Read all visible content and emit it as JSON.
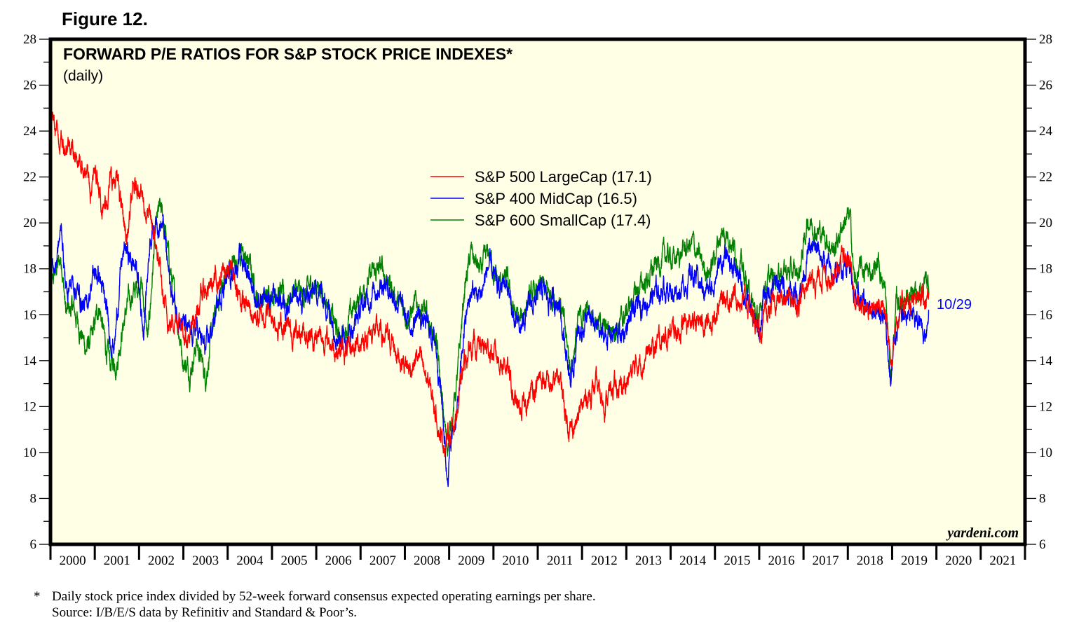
{
  "figure_label": "Figure 12.",
  "footnote": {
    "marker": "*",
    "line1": "Daily stock price index divided by 52-week forward consensus expected operating earnings per share.",
    "line2": "Source: I/B/E/S data by Refinitiv and Standard & Poor’s."
  },
  "chart_data": {
    "type": "line",
    "title": "FORWARD P/E RATIOS FOR S&P STOCK PRICE INDEXES*",
    "subtitle": "(daily)",
    "credit": "yardeni.com",
    "last_date_label": "10/29",
    "xlabel": "",
    "ylabel": "",
    "ylim": [
      6,
      28
    ],
    "y_ticks": [
      6,
      8,
      10,
      12,
      14,
      16,
      18,
      20,
      22,
      24,
      26,
      28
    ],
    "y_axis_sides": [
      "left",
      "right"
    ],
    "x_range": [
      2000,
      2022
    ],
    "x_tick_labels": [
      "2000",
      "2001",
      "2002",
      "2003",
      "2004",
      "2005",
      "2006",
      "2007",
      "2008",
      "2009",
      "2010",
      "2011",
      "2012",
      "2013",
      "2014",
      "2015",
      "2016",
      "2017",
      "2018",
      "2019",
      "2020",
      "2021"
    ],
    "grid": false,
    "legend_position": "center-top",
    "x_sample_note": "approximate values, sampled roughly every 2 months (year fractions)",
    "series": [
      {
        "name": "S&P 500 LargeCap",
        "legend_label": "S&P 500 LargeCap (17.1)",
        "latest": 17.1,
        "color": "#ff0000",
        "x": [
          2000.0,
          2000.15,
          2000.3,
          2000.45,
          2000.6,
          2000.75,
          2000.9,
          2001.05,
          2001.2,
          2001.35,
          2001.5,
          2001.65,
          2001.72,
          2001.85,
          2002.0,
          2002.15,
          2002.3,
          2002.45,
          2002.55,
          2002.7,
          2002.85,
          2003.0,
          2003.15,
          2003.3,
          2003.45,
          2003.6,
          2003.75,
          2003.9,
          2004.1,
          2004.3,
          2004.5,
          2004.7,
          2004.9,
          2005.1,
          2005.3,
          2005.5,
          2005.7,
          2005.9,
          2006.1,
          2006.3,
          2006.5,
          2006.7,
          2006.9,
          2007.1,
          2007.3,
          2007.5,
          2007.7,
          2007.9,
          2008.1,
          2008.3,
          2008.5,
          2008.7,
          2008.85,
          2008.95,
          2009.1,
          2009.2,
          2009.35,
          2009.5,
          2009.7,
          2009.9,
          2010.1,
          2010.3,
          2010.45,
          2010.6,
          2010.75,
          2010.9,
          2011.1,
          2011.3,
          2011.5,
          2011.65,
          2011.75,
          2011.9,
          2012.1,
          2012.3,
          2012.5,
          2012.7,
          2012.9,
          2013.1,
          2013.3,
          2013.5,
          2013.7,
          2013.9,
          2014.1,
          2014.3,
          2014.5,
          2014.7,
          2014.9,
          2015.1,
          2015.3,
          2015.5,
          2015.65,
          2015.8,
          2016.0,
          2016.1,
          2016.3,
          2016.5,
          2016.7,
          2016.9,
          2017.1,
          2017.3,
          2017.5,
          2017.7,
          2017.9,
          2018.05,
          2018.15,
          2018.3,
          2018.5,
          2018.7,
          2018.85,
          2018.97,
          2019.1,
          2019.3,
          2019.5,
          2019.65,
          2019.75,
          2019.83
        ],
        "values": [
          24.8,
          24.0,
          23.4,
          23.6,
          22.8,
          22.5,
          21.5,
          22.3,
          20.5,
          21.8,
          21.8,
          20.2,
          19.2,
          21.2,
          21.8,
          20.5,
          19.8,
          18.2,
          16.5,
          15.6,
          16.0,
          15.5,
          14.9,
          16.2,
          17.0,
          17.2,
          17.5,
          17.8,
          17.9,
          16.6,
          16.2,
          15.8,
          16.2,
          15.7,
          15.4,
          15.2,
          15.4,
          15.0,
          15.0,
          14.8,
          14.5,
          14.3,
          14.7,
          15.0,
          15.3,
          15.1,
          14.8,
          14.2,
          13.6,
          14.2,
          13.2,
          11.8,
          10.4,
          10.6,
          11.2,
          12.0,
          14.0,
          14.7,
          14.6,
          14.5,
          14.1,
          13.9,
          12.3,
          11.7,
          12.2,
          12.8,
          13.2,
          12.8,
          13.3,
          11.5,
          11.0,
          11.4,
          12.4,
          12.8,
          12.2,
          12.8,
          12.8,
          13.4,
          14.0,
          14.3,
          14.7,
          15.1,
          15.3,
          15.5,
          15.6,
          15.7,
          15.6,
          16.5,
          16.8,
          16.9,
          16.6,
          16.3,
          15.2,
          15.5,
          16.4,
          16.6,
          16.8,
          16.6,
          17.5,
          17.6,
          17.8,
          17.9,
          18.2,
          18.5,
          16.6,
          16.3,
          16.4,
          16.5,
          16.0,
          14.2,
          15.8,
          16.6,
          16.4,
          16.9,
          16.6,
          17.1
        ]
      },
      {
        "name": "S&P 400 MidCap",
        "legend_label": "S&P 400 MidCap (16.5)",
        "latest": 16.5,
        "color": "#0000ff",
        "x": [
          2000.0,
          2000.1,
          2000.25,
          2000.35,
          2000.5,
          2000.65,
          2000.8,
          2000.95,
          2001.1,
          2001.25,
          2001.35,
          2001.45,
          2001.6,
          2001.7,
          2001.8,
          2001.95,
          2002.1,
          2002.25,
          2002.4,
          2002.55,
          2002.7,
          2002.85,
          2003.0,
          2003.15,
          2003.3,
          2003.5,
          2003.7,
          2003.9,
          2004.1,
          2004.3,
          2004.5,
          2004.7,
          2004.9,
          2005.1,
          2005.3,
          2005.5,
          2005.7,
          2005.9,
          2006.1,
          2006.3,
          2006.5,
          2006.7,
          2006.9,
          2007.1,
          2007.3,
          2007.5,
          2007.7,
          2007.9,
          2008.1,
          2008.3,
          2008.5,
          2008.7,
          2008.85,
          2008.95,
          2009.05,
          2009.2,
          2009.35,
          2009.5,
          2009.7,
          2009.9,
          2010.1,
          2010.3,
          2010.45,
          2010.6,
          2010.75,
          2010.9,
          2011.1,
          2011.3,
          2011.5,
          2011.65,
          2011.75,
          2011.9,
          2012.1,
          2012.3,
          2012.5,
          2012.7,
          2012.9,
          2013.1,
          2013.3,
          2013.5,
          2013.7,
          2013.9,
          2014.1,
          2014.3,
          2014.5,
          2014.7,
          2014.9,
          2015.1,
          2015.3,
          2015.5,
          2015.65,
          2015.8,
          2016.0,
          2016.1,
          2016.3,
          2016.5,
          2016.7,
          2016.9,
          2017.1,
          2017.3,
          2017.5,
          2017.7,
          2017.9,
          2018.05,
          2018.15,
          2018.3,
          2018.5,
          2018.7,
          2018.85,
          2018.97,
          2019.1,
          2019.3,
          2019.5,
          2019.65,
          2019.75,
          2019.83
        ],
        "values": [
          18.3,
          18.0,
          19.8,
          17.0,
          17.5,
          16.8,
          16.2,
          17.7,
          17.8,
          16.2,
          15.0,
          14.8,
          18.2,
          18.9,
          18.4,
          18.0,
          15.3,
          19.5,
          20.2,
          19.8,
          17.2,
          16.2,
          15.6,
          15.0,
          15.4,
          14.4,
          15.8,
          17.3,
          18.0,
          18.5,
          17.8,
          16.2,
          16.6,
          16.8,
          16.5,
          16.8,
          16.5,
          16.9,
          17.0,
          16.2,
          15.2,
          15.0,
          15.8,
          16.5,
          17.1,
          17.5,
          17.0,
          16.4,
          15.5,
          16.0,
          15.5,
          14.8,
          12.0,
          9.0,
          10.5,
          12.0,
          15.6,
          17.0,
          16.8,
          18.2,
          17.0,
          17.5,
          15.8,
          15.2,
          16.2,
          16.5,
          17.0,
          16.6,
          16.6,
          14.2,
          13.0,
          15.0,
          15.8,
          15.5,
          15.0,
          15.2,
          15.1,
          15.8,
          16.5,
          16.7,
          17.0,
          17.2,
          17.0,
          17.3,
          17.8,
          17.2,
          17.0,
          18.2,
          18.5,
          17.8,
          17.0,
          16.2,
          15.0,
          16.8,
          17.2,
          17.3,
          17.0,
          16.9,
          18.7,
          18.8,
          18.2,
          17.6,
          18.2,
          18.4,
          16.5,
          16.6,
          16.4,
          16.3,
          15.5,
          13.0,
          15.6,
          16.0,
          15.8,
          15.5,
          15.2,
          16.5
        ]
      },
      {
        "name": "S&P 600 SmallCap",
        "legend_label": "S&P 600 SmallCap (17.4)",
        "latest": 17.4,
        "color": "#008000",
        "x": [
          2000.0,
          2000.1,
          2000.25,
          2000.35,
          2000.5,
          2000.65,
          2000.8,
          2000.95,
          2001.1,
          2001.25,
          2001.35,
          2001.5,
          2001.6,
          2001.75,
          2001.9,
          2002.05,
          2002.2,
          2002.35,
          2002.45,
          2002.55,
          2002.7,
          2002.85,
          2003.0,
          2003.15,
          2003.3,
          2003.5,
          2003.7,
          2003.9,
          2004.1,
          2004.3,
          2004.5,
          2004.7,
          2004.9,
          2005.1,
          2005.3,
          2005.5,
          2005.7,
          2005.9,
          2006.1,
          2006.3,
          2006.5,
          2006.7,
          2006.9,
          2007.1,
          2007.3,
          2007.5,
          2007.7,
          2007.9,
          2008.1,
          2008.3,
          2008.5,
          2008.7,
          2008.85,
          2008.95,
          2009.05,
          2009.2,
          2009.35,
          2009.5,
          2009.7,
          2009.9,
          2010.1,
          2010.3,
          2010.45,
          2010.6,
          2010.75,
          2010.9,
          2011.1,
          2011.3,
          2011.5,
          2011.65,
          2011.75,
          2011.9,
          2012.1,
          2012.3,
          2012.5,
          2012.7,
          2012.9,
          2013.1,
          2013.3,
          2013.5,
          2013.7,
          2013.9,
          2014.1,
          2014.3,
          2014.5,
          2014.7,
          2014.9,
          2015.1,
          2015.3,
          2015.5,
          2015.65,
          2015.8,
          2016.0,
          2016.1,
          2016.3,
          2016.5,
          2016.7,
          2016.9,
          2017.1,
          2017.3,
          2017.5,
          2017.7,
          2017.9,
          2018.05,
          2018.15,
          2018.3,
          2018.5,
          2018.7,
          2018.85,
          2018.97,
          2019.1,
          2019.3,
          2019.5,
          2019.65,
          2019.75,
          2019.83
        ],
        "values": [
          16.8,
          17.8,
          18.5,
          16.0,
          16.3,
          15.5,
          14.5,
          15.0,
          16.5,
          14.5,
          13.8,
          14.0,
          15.2,
          16.5,
          17.0,
          17.5,
          14.8,
          19.2,
          20.5,
          20.2,
          18.0,
          16.0,
          14.0,
          13.6,
          14.8,
          13.3,
          15.8,
          17.5,
          18.2,
          18.6,
          18.2,
          16.5,
          16.8,
          17.2,
          16.6,
          17.0,
          16.8,
          17.2,
          17.3,
          16.3,
          15.0,
          15.6,
          16.5,
          17.3,
          17.8,
          18.0,
          17.2,
          16.3,
          16.0,
          16.5,
          15.8,
          15.0,
          12.0,
          10.3,
          11.2,
          13.5,
          17.2,
          18.7,
          17.8,
          18.7,
          17.3,
          17.5,
          16.2,
          15.6,
          16.6,
          16.8,
          17.2,
          16.8,
          16.8,
          14.8,
          13.5,
          15.6,
          16.2,
          16.0,
          15.3,
          15.5,
          15.7,
          16.5,
          17.2,
          17.6,
          18.2,
          18.6,
          18.4,
          18.8,
          19.1,
          18.2,
          17.9,
          19.4,
          19.6,
          18.6,
          17.8,
          16.7,
          15.5,
          17.3,
          17.6,
          18.0,
          17.8,
          17.8,
          20.2,
          19.7,
          19.4,
          18.8,
          20.1,
          20.2,
          17.4,
          18.0,
          17.8,
          18.3,
          16.8,
          13.3,
          16.5,
          16.8,
          16.6,
          16.8,
          17.6,
          17.4
        ]
      }
    ]
  }
}
